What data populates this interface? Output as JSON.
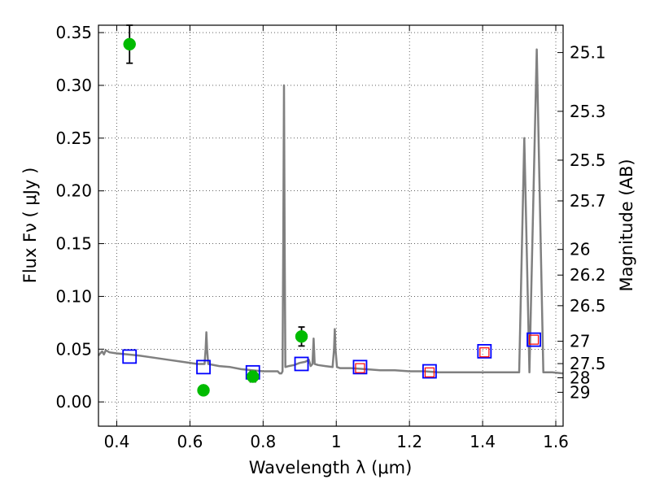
{
  "chart_data": {
    "type": "scatter",
    "xlabel": "Wavelength  λ (μm)",
    "ylabel": "Flux  Fν  ( μJy )",
    "y2label": "Magnitude (AB)",
    "xlim": [
      0.35,
      1.62
    ],
    "ylim": [
      -0.023,
      0.357
    ],
    "grid": true,
    "x_ticks": [
      0.4,
      0.6,
      0.8,
      1.0,
      1.2,
      1.4,
      1.6
    ],
    "x_tick_labels": [
      "0.4",
      "0.6",
      "0.8",
      "1",
      "1.2",
      "1.4",
      "1.6"
    ],
    "y_ticks": [
      0.0,
      0.05,
      0.1,
      0.15,
      0.2,
      0.25,
      0.3,
      0.35
    ],
    "y_tick_labels": [
      "0.00",
      "0.05",
      "0.10",
      "0.15",
      "0.20",
      "0.25",
      "0.30",
      "0.35"
    ],
    "mag_ticks": [
      {
        "label": "25.1",
        "flux": 0.3311
      },
      {
        "label": "25.3",
        "flux": 0.2754
      },
      {
        "label": "25.5",
        "flux": 0.2291
      },
      {
        "label": "25.7",
        "flux": 0.1905
      },
      {
        "label": "26",
        "flux": 0.1445
      },
      {
        "label": "26.2",
        "flux": 0.1202
      },
      {
        "label": "26.5",
        "flux": 0.0912
      },
      {
        "label": "27",
        "flux": 0.0575
      },
      {
        "label": "27.5",
        "flux": 0.0363
      },
      {
        "label": "28",
        "flux": 0.0229
      },
      {
        "label": "29",
        "flux": 0.0091
      }
    ],
    "series": [
      {
        "kind": "model_spectrum",
        "color": "#808080",
        "points": [
          [
            0.35,
            0.044
          ],
          [
            0.355,
            0.046
          ],
          [
            0.36,
            0.048
          ],
          [
            0.365,
            0.045
          ],
          [
            0.37,
            0.049
          ],
          [
            0.38,
            0.047
          ],
          [
            0.4,
            0.046
          ],
          [
            0.43,
            0.045
          ],
          [
            0.46,
            0.044
          ],
          [
            0.5,
            0.042
          ],
          [
            0.54,
            0.04
          ],
          [
            0.58,
            0.038
          ],
          [
            0.62,
            0.036
          ],
          [
            0.64,
            0.036
          ],
          [
            0.643,
            0.05
          ],
          [
            0.645,
            0.066
          ],
          [
            0.647,
            0.05
          ],
          [
            0.65,
            0.036
          ],
          [
            0.68,
            0.034
          ],
          [
            0.71,
            0.033
          ],
          [
            0.74,
            0.031
          ],
          [
            0.77,
            0.03
          ],
          [
            0.8,
            0.029
          ],
          [
            0.82,
            0.029
          ],
          [
            0.84,
            0.029
          ],
          [
            0.845,
            0.027
          ],
          [
            0.85,
            0.027
          ],
          [
            0.853,
            0.029
          ],
          [
            0.855,
            0.15
          ],
          [
            0.857,
            0.3
          ],
          [
            0.859,
            0.15
          ],
          [
            0.861,
            0.033
          ],
          [
            0.87,
            0.034
          ],
          [
            0.885,
            0.035
          ],
          [
            0.9,
            0.037
          ],
          [
            0.915,
            0.038
          ],
          [
            0.925,
            0.04
          ],
          [
            0.93,
            0.034
          ],
          [
            0.935,
            0.036
          ],
          [
            0.938,
            0.06
          ],
          [
            0.941,
            0.036
          ],
          [
            0.95,
            0.035
          ],
          [
            0.97,
            0.034
          ],
          [
            0.99,
            0.033
          ],
          [
            0.994,
            0.05
          ],
          [
            0.996,
            0.069
          ],
          [
            0.998,
            0.05
          ],
          [
            1.002,
            0.033
          ],
          [
            1.01,
            0.032
          ],
          [
            1.04,
            0.032
          ],
          [
            1.08,
            0.031
          ],
          [
            1.12,
            0.03
          ],
          [
            1.16,
            0.03
          ],
          [
            1.2,
            0.029
          ],
          [
            1.24,
            0.029
          ],
          [
            1.28,
            0.028
          ],
          [
            1.32,
            0.028
          ],
          [
            1.36,
            0.028
          ],
          [
            1.4,
            0.028
          ],
          [
            1.44,
            0.028
          ],
          [
            1.48,
            0.028
          ],
          [
            1.5,
            0.028
          ],
          [
            1.514,
            0.25
          ],
          [
            1.528,
            0.028
          ],
          [
            1.548,
            0.334
          ],
          [
            1.566,
            0.028
          ],
          [
            1.59,
            0.028
          ],
          [
            1.62,
            0.027
          ]
        ]
      },
      {
        "kind": "model_photometry",
        "marker": "square",
        "color": "#0000ff",
        "points": [
          [
            0.435,
            0.043
          ],
          [
            0.637,
            0.033
          ],
          [
            0.772,
            0.028
          ],
          [
            0.905,
            0.036
          ],
          [
            1.065,
            0.033
          ],
          [
            1.255,
            0.029
          ],
          [
            1.405,
            0.048
          ],
          [
            1.54,
            0.059
          ]
        ]
      },
      {
        "kind": "model_photometry_inner",
        "marker": "square",
        "color": "#ff0000",
        "points": [
          [
            1.065,
            0.032
          ],
          [
            1.255,
            0.028
          ],
          [
            1.405,
            0.047
          ],
          [
            1.54,
            0.059
          ]
        ]
      },
      {
        "kind": "observed_photometry",
        "marker": "circle",
        "color": "#00bb00",
        "points": [
          {
            "x": 0.435,
            "y": 0.339,
            "err": 0.018
          },
          {
            "x": 0.637,
            "y": 0.011,
            "err": 0.004
          },
          {
            "x": 0.772,
            "y": 0.024,
            "err": 0.005
          },
          {
            "x": 0.905,
            "y": 0.062,
            "err": 0.009
          }
        ]
      }
    ]
  }
}
